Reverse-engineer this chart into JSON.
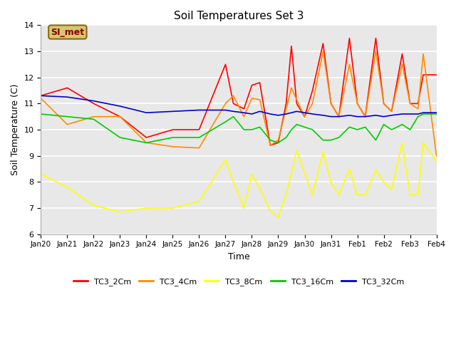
{
  "title": "Soil Temperatures Set 3",
  "xlabel": "Time",
  "ylabel": "Soil Temperature (C)",
  "ylim": [
    6.0,
    14.0
  ],
  "yticks": [
    6.0,
    7.0,
    8.0,
    9.0,
    10.0,
    11.0,
    12.0,
    13.0,
    14.0
  ],
  "bg_color": "#e8e8e8",
  "annotation_text": "SI_met",
  "annotation_color": "#8b0000",
  "annotation_bg": "#d4c870",
  "series": {
    "TC3_2Cm": {
      "color": "#ff0000",
      "x": [
        0,
        1,
        2,
        3,
        4,
        5,
        6,
        7,
        7.3,
        7.7,
        8,
        8.3,
        8.7,
        9,
        9.3,
        9.5,
        9.7,
        10,
        10.3,
        10.7,
        11,
        11.3,
        11.7,
        12,
        12.3,
        12.7,
        13,
        13.3,
        13.7,
        14,
        14.3,
        14.5,
        15
      ],
      "y": [
        11.3,
        11.6,
        11.0,
        10.5,
        9.7,
        10.0,
        10.0,
        12.5,
        11.0,
        10.8,
        11.7,
        11.8,
        9.4,
        9.5,
        11.0,
        13.2,
        11.0,
        10.5,
        11.5,
        13.3,
        11.0,
        10.5,
        13.5,
        11.0,
        10.5,
        13.5,
        11.0,
        10.7,
        12.9,
        11.0,
        11.0,
        12.1,
        12.1
      ]
    },
    "TC3_4Cm": {
      "color": "#ff8c00",
      "x": [
        0,
        1,
        2,
        3,
        4,
        5,
        6,
        7,
        7.3,
        7.7,
        8,
        8.3,
        8.7,
        9,
        9.3,
        9.5,
        9.7,
        10,
        10.3,
        10.7,
        11,
        11.3,
        11.7,
        12,
        12.3,
        12.7,
        13,
        13.3,
        13.7,
        14,
        14.3,
        14.5,
        15
      ],
      "y": [
        11.2,
        10.2,
        10.5,
        10.5,
        9.5,
        9.35,
        9.3,
        11.0,
        11.3,
        10.5,
        11.2,
        11.15,
        9.4,
        9.6,
        10.8,
        11.6,
        11.15,
        10.5,
        11.0,
        13.0,
        11.0,
        10.5,
        12.5,
        11.0,
        10.5,
        13.0,
        11.0,
        10.7,
        12.5,
        11.0,
        10.8,
        12.9,
        9.0
      ]
    },
    "TC3_8Cm": {
      "color": "#ffff00",
      "x": [
        0,
        1,
        2,
        3,
        4,
        5,
        6,
        7,
        7.3,
        7.7,
        8,
        8.3,
        8.7,
        9,
        9.3,
        9.7,
        10,
        10.3,
        10.7,
        11,
        11.3,
        11.7,
        12,
        12.3,
        12.7,
        13,
        13.3,
        13.7,
        14,
        14.3,
        14.5,
        15
      ],
      "y": [
        8.3,
        7.8,
        7.1,
        6.85,
        7.0,
        7.0,
        7.25,
        8.85,
        8.0,
        7.0,
        8.3,
        7.75,
        6.9,
        6.65,
        7.5,
        9.2,
        8.35,
        7.5,
        9.15,
        8.0,
        7.5,
        8.5,
        7.5,
        7.5,
        8.45,
        8.0,
        7.7,
        9.5,
        7.5,
        7.5,
        9.5,
        8.8
      ]
    },
    "TC3_16Cm": {
      "color": "#00cc00",
      "x": [
        0,
        1,
        2,
        3,
        4,
        5,
        6,
        7,
        7.3,
        7.7,
        8,
        8.3,
        8.7,
        9,
        9.3,
        9.5,
        9.7,
        10,
        10.3,
        10.7,
        11,
        11.3,
        11.7,
        12,
        12.3,
        12.7,
        13,
        13.3,
        13.7,
        14,
        14.3,
        14.5,
        15
      ],
      "y": [
        10.6,
        10.5,
        10.4,
        9.7,
        9.5,
        9.7,
        9.7,
        10.3,
        10.5,
        10.0,
        10.0,
        10.1,
        9.6,
        9.5,
        9.7,
        10.0,
        10.2,
        10.1,
        10.0,
        9.6,
        9.6,
        9.7,
        10.1,
        10.0,
        10.1,
        9.6,
        10.2,
        10.0,
        10.2,
        10.0,
        10.5,
        10.6,
        10.6
      ]
    },
    "TC3_32Cm": {
      "color": "#0000cc",
      "x": [
        0,
        1,
        2,
        3,
        4,
        5,
        6,
        7,
        7.3,
        7.7,
        8,
        8.3,
        8.7,
        9,
        9.3,
        9.5,
        9.7,
        10,
        10.3,
        10.7,
        11,
        11.3,
        11.7,
        12,
        12.3,
        12.7,
        13,
        13.3,
        13.7,
        14,
        14.3,
        14.5,
        15
      ],
      "y": [
        11.3,
        11.25,
        11.1,
        10.9,
        10.65,
        10.7,
        10.75,
        10.75,
        10.7,
        10.65,
        10.6,
        10.7,
        10.6,
        10.55,
        10.6,
        10.65,
        10.7,
        10.65,
        10.6,
        10.55,
        10.5,
        10.5,
        10.55,
        10.5,
        10.5,
        10.55,
        10.5,
        10.55,
        10.6,
        10.6,
        10.6,
        10.65,
        10.65
      ]
    }
  },
  "xtick_labels": [
    "Jan 20",
    "Jan 21",
    "Jan 22",
    "Jan 23",
    "Jan 24",
    "Jan 25",
    "Jan 26",
    "Jan 27",
    "Jan 28",
    "Jan 29",
    "Jan 30",
    "Jan 31",
    "Feb 1",
    "Feb 2",
    "Feb 3",
    "Feb 4"
  ],
  "xtick_positions": [
    0,
    1,
    2,
    3,
    4,
    5,
    6,
    7,
    8,
    9,
    10,
    11,
    12,
    13,
    14,
    15
  ]
}
